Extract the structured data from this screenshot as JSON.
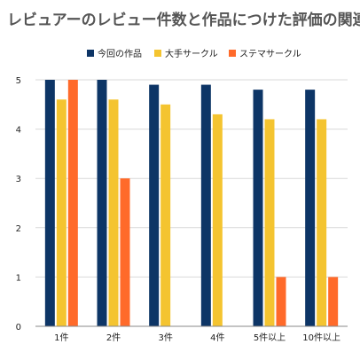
{
  "chart_data": {
    "type": "bar",
    "title": "レビュアーのレビュー件数と作品につけた評価の関連性",
    "categories": [
      "1件",
      "2件",
      "3件",
      "4件",
      "5件以上",
      "10件以上"
    ],
    "series": [
      {
        "name": "今回の作品",
        "color": "#0d3566",
        "values": [
          5.0,
          5.0,
          4.9,
          4.9,
          4.8,
          4.8
        ]
      },
      {
        "name": "大手サークル",
        "color": "#f4c430",
        "values": [
          4.6,
          4.6,
          4.5,
          4.3,
          4.2,
          4.2
        ]
      },
      {
        "name": "ステマサークル",
        "color": "#ff6a2a",
        "values": [
          5.0,
          3.0,
          null,
          null,
          1.0,
          1.0
        ]
      }
    ],
    "ylim": [
      0,
      5
    ],
    "yticks": [
      0,
      1,
      2,
      3,
      4,
      5
    ],
    "grid": true,
    "legend_position": "top"
  }
}
